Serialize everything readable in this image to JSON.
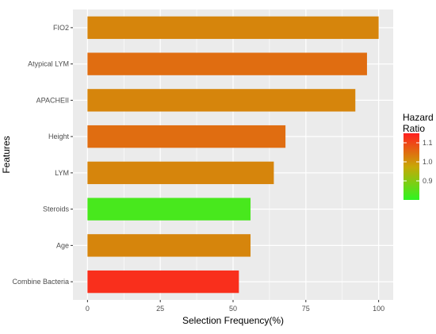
{
  "chart_data": {
    "type": "bar",
    "orientation": "horizontal",
    "categories": [
      "FIO2",
      "Atypical LYM",
      "APACHEII",
      "Height",
      "LYM",
      "Steroids",
      "Age",
      "Combine Bacteria"
    ],
    "values": [
      100,
      96,
      92,
      68,
      64,
      56,
      56,
      52
    ],
    "hazard_ratios": [
      1.02,
      1.05,
      1.02,
      1.05,
      1.02,
      0.83,
      1.02,
      1.13
    ],
    "xlabel": "Selection Frequency(%)",
    "ylabel": "Features",
    "xlim": [
      -5,
      105
    ],
    "xticks": [
      0,
      25,
      50,
      75,
      100
    ],
    "tick_labels": [
      "0",
      "25",
      "50",
      "75",
      "100"
    ],
    "grid": true,
    "legend": {
      "title_line1": "Hazard",
      "title_line2": "Ratio",
      "range": [
        0.8,
        1.15
      ],
      "ticks": [
        0.9,
        1.0,
        1.1
      ],
      "tick_labels": [
        "0.9",
        "1.0",
        "1.1"
      ],
      "colors": {
        "low": "#00ff00",
        "high": "#ff0000"
      },
      "placement": "right"
    },
    "panel_color": "#ebebeb",
    "grid_color": "#ffffff"
  }
}
